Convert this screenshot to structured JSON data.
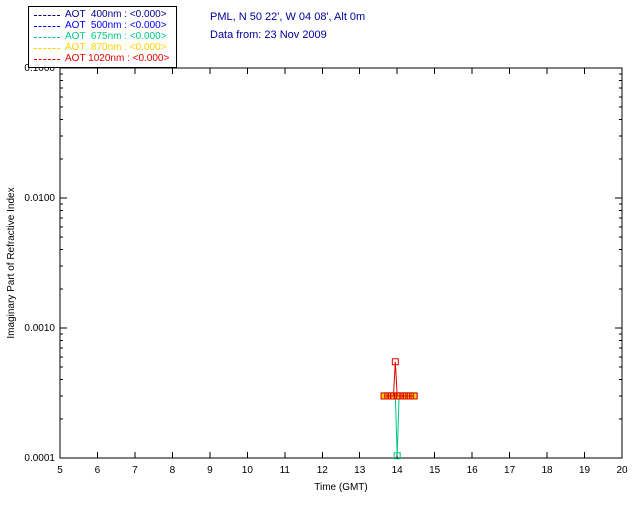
{
  "header": {
    "location": "PML, N 50 22', W 04 08', Alt 0m",
    "data_from": "Data from: 23 Nov 2009",
    "text_color": "#000099"
  },
  "legend": {
    "entries": [
      {
        "label": "AOT  400nm : <0.000>",
        "color": "#00008c"
      },
      {
        "label": "AOT  500nm : <0.000>",
        "color": "#0000ff"
      },
      {
        "label": "AOT  675nm : <0.000>",
        "color": "#00c882"
      },
      {
        "label": "AOT  870nm : <0.000>",
        "color": "#ffd200"
      },
      {
        "label": "AOT 1020nm : <0.000>",
        "color": "#e00000"
      }
    ]
  },
  "chart_data": {
    "type": "line",
    "title": "",
    "xlabel": "Time (GMT)",
    "ylabel": "Imaginary Part of Refractive Index",
    "xlim": [
      5,
      20
    ],
    "x_ticks": [
      5,
      6,
      7,
      8,
      9,
      10,
      11,
      12,
      13,
      14,
      15,
      16,
      17,
      18,
      19,
      20
    ],
    "yscale": "log",
    "ylim": [
      0.0001,
      0.1
    ],
    "y_ticks": [
      {
        "value": 0.1,
        "label": "0.1000"
      },
      {
        "value": 0.01,
        "label": "0.0100"
      },
      {
        "value": 0.001,
        "label": "0.0010"
      },
      {
        "value": 0.0001,
        "label": "0.0001"
      }
    ],
    "grid": false,
    "legend_position": "top-left",
    "series": [
      {
        "name": "AOT 400nm",
        "color": "#00008c",
        "marker": "square",
        "fill": "open",
        "x": [
          13.65,
          13.75,
          13.85,
          13.95,
          14.05,
          14.15,
          14.25,
          14.35,
          14.45
        ],
        "y": [
          0.0003,
          0.0003,
          0.0003,
          0.0003,
          0.0003,
          0.0003,
          0.0003,
          0.0003,
          0.0003
        ]
      },
      {
        "name": "AOT 500nm",
        "color": "#0000ff",
        "marker": "square",
        "fill": "open",
        "x": [
          13.65,
          13.75,
          13.85,
          13.95,
          14.05,
          14.15,
          14.25,
          14.35,
          14.45
        ],
        "y": [
          0.0003,
          0.0003,
          0.0003,
          0.0003,
          0.0003,
          0.0003,
          0.0003,
          0.0003,
          0.0003
        ]
      },
      {
        "name": "AOT 675nm",
        "color": "#00c882",
        "marker": "square",
        "fill": "open",
        "x": [
          13.65,
          13.75,
          13.85,
          13.95,
          14.0,
          14.05,
          14.15,
          14.25,
          14.35,
          14.45
        ],
        "y": [
          0.0003,
          0.0003,
          0.0003,
          0.0003,
          0.000104,
          0.0003,
          0.0003,
          0.0003,
          0.0003,
          0.0003
        ]
      },
      {
        "name": "AOT 870nm",
        "color": "#ffd200",
        "marker": "square",
        "fill": "solid",
        "x": [
          13.65,
          13.75,
          13.85,
          13.95,
          14.05,
          14.15,
          14.25,
          14.35,
          14.45
        ],
        "y": [
          0.0003,
          0.0003,
          0.0003,
          0.0003,
          0.0003,
          0.0003,
          0.0003,
          0.0003,
          0.0003
        ]
      },
      {
        "name": "AOT 1020nm",
        "color": "#e00000",
        "marker": "square",
        "fill": "open",
        "x": [
          13.65,
          13.75,
          13.85,
          13.9,
          13.95,
          14.0,
          14.05,
          14.15,
          14.25,
          14.35,
          14.45
        ],
        "y": [
          0.0003,
          0.0003,
          0.0003,
          0.0003,
          0.00055,
          0.0003,
          0.0003,
          0.0003,
          0.0003,
          0.0003,
          0.0003
        ]
      }
    ]
  }
}
